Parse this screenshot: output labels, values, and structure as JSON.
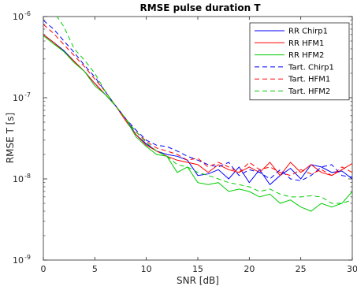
{
  "chart_data": {
    "type": "line",
    "title": "RMSE pulse duration T",
    "xlabel": "SNR [dB]",
    "ylabel": "RMSE T [s]",
    "xlim": [
      0,
      30
    ],
    "ylim_log10": [
      -9,
      -6
    ],
    "y_scale": "log",
    "grid": false,
    "legend_position": "top-right",
    "x_ticks": [
      0,
      5,
      10,
      15,
      20,
      25,
      30
    ],
    "x_tick_labels": [
      "0",
      "5",
      "10",
      "15",
      "20",
      "25",
      "30"
    ],
    "y_ticks_exp": [
      -9,
      -8,
      -7,
      -6
    ],
    "y_tick_base": "10",
    "y_tick_exps": [
      "-9",
      "-8",
      "-7",
      "-6"
    ],
    "x": [
      0,
      1,
      2,
      3,
      4,
      5,
      6,
      7,
      8,
      9,
      10,
      11,
      12,
      13,
      14,
      15,
      16,
      17,
      18,
      19,
      20,
      21,
      22,
      23,
      24,
      25,
      26,
      27,
      28,
      29,
      30
    ],
    "series": [
      {
        "name": "RR Chirp1",
        "color": "#0000ff",
        "dash": "solid",
        "values": [
          6e-07,
          4.8e-07,
          3.8e-07,
          2.8e-07,
          2.1e-07,
          1.5e-07,
          1.1e-07,
          8e-08,
          5.5e-08,
          3.5e-08,
          2.7e-08,
          2.2e-08,
          2e-08,
          1.9e-08,
          1.7e-08,
          1.1e-08,
          1.15e-08,
          1.3e-08,
          1e-08,
          1.4e-08,
          9e-09,
          1.3e-08,
          8.5e-09,
          1.1e-08,
          1.35e-08,
          1e-08,
          1.5e-08,
          1.4e-08,
          1.2e-08,
          1.25e-08,
          1e-08
        ]
      },
      {
        "name": "RR HFM1",
        "color": "#ff0000",
        "dash": "solid",
        "values": [
          6e-07,
          4.8e-07,
          3.7e-07,
          2.8e-07,
          2.1e-07,
          1.5e-07,
          1.1e-07,
          8e-08,
          5.2e-08,
          3.5e-08,
          2.6e-08,
          2.2e-08,
          1.9e-08,
          1.7e-08,
          1.6e-08,
          1.5e-08,
          1.2e-08,
          1.5e-08,
          1.3e-08,
          1.2e-08,
          1.4e-08,
          1.2e-08,
          1.6e-08,
          1.1e-08,
          1.6e-08,
          1.2e-08,
          1.5e-08,
          1.2e-08,
          1.1e-08,
          1.3e-08,
          1.55e-08
        ]
      },
      {
        "name": "RR HFM2",
        "color": "#00cc00",
        "dash": "solid",
        "values": [
          5.8e-07,
          4.6e-07,
          3.7e-07,
          2.7e-07,
          2.1e-07,
          1.4e-07,
          1.1e-07,
          8e-08,
          5.5e-08,
          3.3e-08,
          2.5e-08,
          2e-08,
          1.9e-08,
          1.2e-08,
          1.4e-08,
          9e-09,
          8.5e-09,
          9e-09,
          7e-09,
          7.5e-09,
          7e-09,
          6e-09,
          6.5e-09,
          5e-09,
          5.5e-09,
          4.5e-09,
          4e-09,
          5e-09,
          4.5e-09,
          5e-09,
          7e-09
        ]
      },
      {
        "name": "Tart. Chirp1",
        "color": "#0000ff",
        "dash": "dashed",
        "values": [
          9e-07,
          7e-07,
          5e-07,
          3.6e-07,
          2.5e-07,
          1.8e-07,
          1.2e-07,
          8e-08,
          5.5e-08,
          4e-08,
          3e-08,
          2.6e-08,
          2.5e-08,
          2.2e-08,
          1.9e-08,
          1.7e-08,
          1.5e-08,
          1.4e-08,
          1.6e-08,
          1.1e-08,
          1.3e-08,
          1.2e-08,
          1e-08,
          1.3e-08,
          1e-08,
          9.5e-09,
          1.1e-08,
          1.4e-08,
          1.5e-08,
          1.1e-08,
          1.05e-08
        ]
      },
      {
        "name": "Tart. HFM1",
        "color": "#ff0000",
        "dash": "dashed",
        "values": [
          8e-07,
          6.2e-07,
          4.5e-07,
          3.3e-07,
          2.4e-07,
          1.7e-07,
          1.2e-07,
          8e-08,
          5.5e-08,
          3.8e-08,
          2.9e-08,
          2.4e-08,
          2.2e-08,
          2e-08,
          1.7e-08,
          1.8e-08,
          1.4e-08,
          1.6e-08,
          1.4e-08,
          1.2e-08,
          1.6e-08,
          1.3e-08,
          1.4e-08,
          1.2e-08,
          1.1e-08,
          1.3e-08,
          1.15e-08,
          1.3e-08,
          1.1e-08,
          1.4e-08,
          1.2e-08
        ]
      },
      {
        "name": "Tart. HFM2",
        "color": "#00cc00",
        "dash": "dashed",
        "values": [
          1.8e-06,
          1.15e-06,
          7.5e-07,
          4e-07,
          2.9e-07,
          2e-07,
          1.2e-07,
          8e-08,
          5.5e-08,
          3.8e-08,
          2.8e-08,
          2.2e-08,
          1.9e-08,
          1.5e-08,
          1.4e-08,
          1.2e-08,
          1.1e-08,
          1e-08,
          9e-09,
          8.5e-09,
          8e-09,
          7e-09,
          7.5e-09,
          6.5e-09,
          6e-09,
          6e-09,
          6.2e-09,
          6e-09,
          5e-09,
          5e-09,
          5.5e-09
        ]
      }
    ]
  }
}
